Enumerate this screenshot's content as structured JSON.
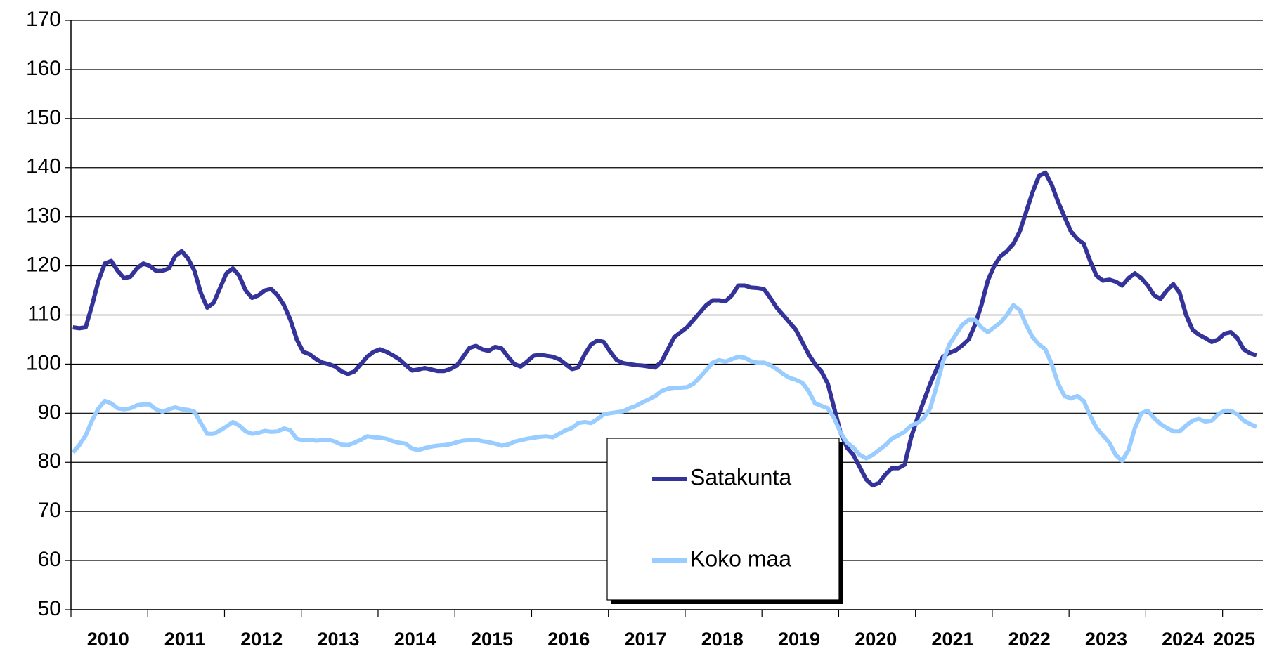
{
  "chart_data": {
    "type": "line",
    "categories": [
      null,
      null,
      null,
      null,
      null,
      null,
      "2010",
      null,
      null,
      null,
      null,
      null,
      null,
      null,
      null,
      null,
      null,
      null,
      "2011",
      null,
      null,
      null,
      null,
      null,
      null,
      null,
      null,
      null,
      null,
      null,
      "2012",
      null,
      null,
      null,
      null,
      null,
      null,
      null,
      null,
      null,
      null,
      null,
      "2013",
      null,
      null,
      null,
      null,
      null,
      null,
      null,
      null,
      null,
      null,
      null,
      "2014",
      null,
      null,
      null,
      null,
      null,
      null,
      null,
      null,
      null,
      null,
      null,
      "2015",
      null,
      null,
      null,
      null,
      null,
      null,
      null,
      null,
      null,
      null,
      null,
      "2016",
      null,
      null,
      null,
      null,
      null,
      null,
      null,
      null,
      null,
      null,
      null,
      "2017",
      null,
      null,
      null,
      null,
      null,
      null,
      null,
      null,
      null,
      null,
      null,
      "2018",
      null,
      null,
      null,
      null,
      null,
      null,
      null,
      null,
      null,
      null,
      null,
      "2019",
      null,
      null,
      null,
      null,
      null,
      null,
      null,
      null,
      null,
      null,
      null,
      "2020",
      null,
      null,
      null,
      null,
      null,
      null,
      null,
      null,
      null,
      null,
      null,
      "2021",
      null,
      null,
      null,
      null,
      null,
      null,
      null,
      null,
      null,
      null,
      null,
      "2022",
      null,
      null,
      null,
      null,
      null,
      null,
      null,
      null,
      null,
      null,
      null,
      "2023",
      null,
      null,
      null,
      null,
      null,
      null,
      null,
      null,
      null,
      null,
      null,
      "2024",
      null,
      null,
      null,
      null,
      null,
      null,
      null,
      "2025",
      null,
      null,
      null
    ],
    "series": [
      {
        "name": "Satakunta",
        "color": "#333399",
        "values": [
          107.5,
          107.3,
          107.5,
          112,
          117,
          120.5,
          121,
          119,
          117.5,
          117.8,
          119.5,
          120.5,
          120,
          119,
          119,
          119.5,
          122,
          123,
          121.5,
          119,
          114.5,
          111.5,
          112.5,
          115.5,
          118.5,
          119.5,
          118,
          115,
          113.5,
          114,
          115,
          115.3,
          114,
          112,
          109,
          105,
          102.5,
          102,
          101,
          100.3,
          100,
          99.5,
          98.5,
          98,
          98.5,
          100,
          101.5,
          102.5,
          103,
          102.5,
          101.8,
          101,
          99.8,
          98.7,
          98.9,
          99.2,
          98.9,
          98.6,
          98.6,
          99,
          99.7,
          101.5,
          103.3,
          103.7,
          103,
          102.7,
          103.5,
          103.2,
          101.5,
          100,
          99.5,
          100.5,
          101.7,
          101.9,
          101.7,
          101.5,
          101,
          100,
          99,
          99.3,
          102,
          104,
          104.8,
          104.5,
          102.5,
          100.8,
          100.2,
          100,
          99.8,
          99.7,
          99.5,
          99.3,
          100.5,
          103,
          105.5,
          106.5,
          107.5,
          109,
          110.5,
          112,
          113,
          113,
          112.8,
          114,
          116,
          116,
          115.6,
          115.5,
          115.3,
          113.5,
          111.5,
          110,
          108.5,
          107,
          104.5,
          102,
          100,
          98.5,
          96,
          91,
          86,
          83,
          81.5,
          79,
          76.5,
          75.3,
          75.8,
          77.5,
          78.8,
          78.8,
          79.5,
          85,
          89,
          92.5,
          96,
          99,
          101.5,
          102.3,
          102.8,
          103.8,
          105,
          108,
          112,
          117,
          120,
          122,
          123,
          124.5,
          127,
          131,
          135,
          138.3,
          139,
          136.5,
          133,
          130,
          127,
          125.5,
          124.5,
          121,
          118,
          117,
          117.2,
          116.8,
          116,
          117.5,
          118.5,
          117.5,
          116,
          114,
          113.3,
          115,
          116.3,
          114.5,
          110,
          107,
          106,
          105.3,
          104.5,
          105,
          106.2,
          106.5,
          105.3,
          103,
          102.2,
          101.8
        ]
      },
      {
        "name": "Koko maa",
        "color": "#99ccff",
        "values": [
          82,
          83.5,
          85.5,
          88.5,
          91,
          92.5,
          92,
          91,
          90.8,
          91,
          91.6,
          91.8,
          91.8,
          90.8,
          90.3,
          90.8,
          91.2,
          90.8,
          90.7,
          90.3,
          88,
          85.8,
          85.8,
          86.5,
          87.3,
          88.2,
          87.5,
          86.3,
          85.8,
          86,
          86.4,
          86.2,
          86.3,
          86.9,
          86.5,
          84.8,
          84.5,
          84.6,
          84.4,
          84.5,
          84.6,
          84.2,
          83.6,
          83.5,
          84,
          84.6,
          85.3,
          85.1,
          85,
          84.8,
          84.3,
          84,
          83.8,
          82.8,
          82.5,
          82.9,
          83.2,
          83.4,
          83.5,
          83.7,
          84.1,
          84.4,
          84.5,
          84.6,
          84.3,
          84.1,
          83.8,
          83.4,
          83.6,
          84.2,
          84.5,
          84.8,
          85,
          85.2,
          85.3,
          85.1,
          85.8,
          86.5,
          87,
          88,
          88.2,
          88,
          88.8,
          89.8,
          90,
          90.2,
          90.4,
          91,
          91.5,
          92.2,
          92.8,
          93.5,
          94.5,
          95,
          95.2,
          95.2,
          95.3,
          96,
          97.3,
          98.8,
          100.3,
          100.8,
          100.5,
          101,
          101.5,
          101.3,
          100.6,
          100.3,
          100.3,
          99.8,
          99,
          98,
          97.2,
          96.8,
          96.2,
          94.5,
          92,
          91.5,
          91,
          89,
          86,
          84,
          83,
          81.5,
          80.8,
          81.5,
          82.5,
          83.5,
          84.8,
          85.5,
          86.2,
          87.5,
          88,
          89,
          91,
          95.5,
          100.5,
          104,
          106,
          108,
          109,
          109,
          107.5,
          106.5,
          107.5,
          108.5,
          110,
          112,
          111,
          108,
          105.5,
          104,
          103,
          100,
          96,
          93.5,
          93,
          93.5,
          92.5,
          89.5,
          87,
          85.5,
          84,
          81.5,
          80.3,
          82.5,
          87,
          90,
          90.5,
          89,
          87.8,
          87,
          86.3,
          86.3,
          87.5,
          88.5,
          88.8,
          88.3,
          88.5,
          89.8,
          90.5,
          90.5,
          89.8,
          88.5,
          87.8,
          87.2
        ]
      }
    ],
    "ylim": [
      50,
      170
    ],
    "yticks": [
      50,
      60,
      70,
      80,
      90,
      100,
      110,
      120,
      130,
      140,
      150,
      160,
      170
    ],
    "grid": true,
    "legend": "bottom center"
  }
}
